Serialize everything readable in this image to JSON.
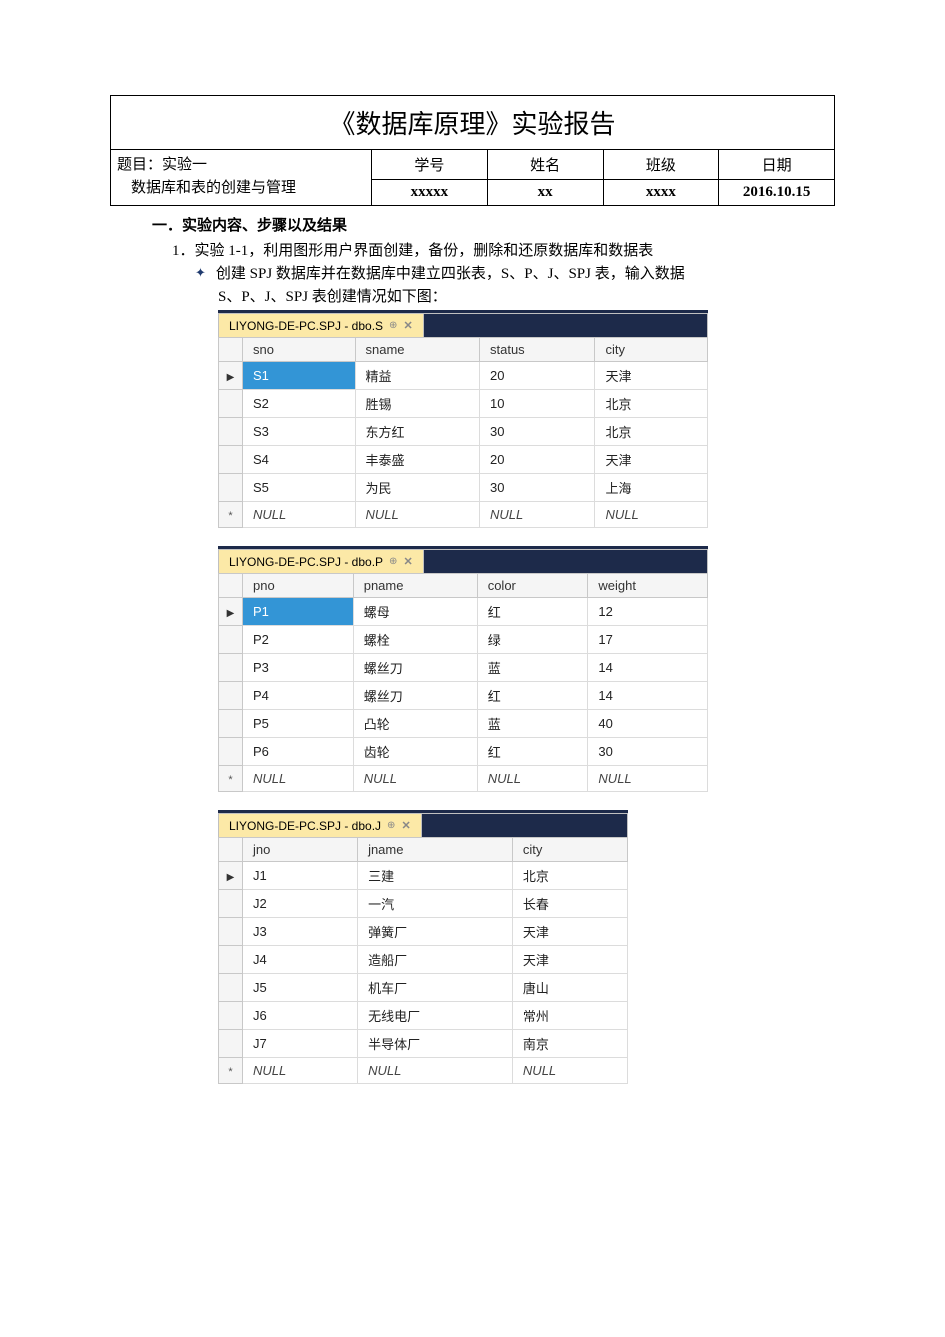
{
  "report": {
    "title": "《数据库原理》实验报告",
    "topic_label": "题目：",
    "topic_line1": "实验一",
    "topic_line2": "数据库和表的创建与管理",
    "headers": {
      "id": "学号",
      "name": "姓名",
      "class": "班级",
      "date": "日期"
    },
    "values": {
      "id": "xxxxx",
      "name": "xx",
      "class": "xxxx",
      "date": "2016.10.15"
    }
  },
  "section1": {
    "heading": "一．实验内容、步骤以及结果",
    "item1": "1．实验 1-1，利用图形用户界面创建，备份，删除和还原数据库和数据表",
    "bullet1": "创建 SPJ 数据库并在数据库中建立四张表，S、P、J、SPJ 表，输入数据",
    "bullet1b": "S、P、J、SPJ 表创建情况如下图："
  },
  "tableS": {
    "tabTitle": "LIYONG-DE-PC.SPJ - dbo.S",
    "columns": [
      "sno",
      "sname",
      "status",
      "city"
    ],
    "rows": [
      [
        "S1",
        "精益",
        "20",
        "天津"
      ],
      [
        "S2",
        "胜锡",
        "10",
        "北京"
      ],
      [
        "S3",
        "东方红",
        "30",
        "北京"
      ],
      [
        "S4",
        "丰泰盛",
        "20",
        "天津"
      ],
      [
        "S5",
        "为民",
        "30",
        "上海"
      ]
    ],
    "nullRow": [
      "NULL",
      "NULL",
      "NULL",
      "NULL"
    ],
    "selected_first": true,
    "tab_bg": "#fce9a7",
    "header_bg": "#1d2a4a",
    "selected_bg": "#3395d6"
  },
  "tableP": {
    "tabTitle": "LIYONG-DE-PC.SPJ - dbo.P",
    "columns": [
      "pno",
      "pname",
      "color",
      "weight"
    ],
    "rows": [
      [
        "P1",
        "螺母",
        "红",
        "12"
      ],
      [
        "P2",
        "螺栓",
        "绿",
        "17"
      ],
      [
        "P3",
        "螺丝刀",
        "蓝",
        "14"
      ],
      [
        "P4",
        "螺丝刀",
        "红",
        "14"
      ],
      [
        "P5",
        "凸轮",
        "蓝",
        "40"
      ],
      [
        "P6",
        "齿轮",
        "红",
        "30"
      ]
    ],
    "nullRow": [
      "NULL",
      "NULL",
      "NULL",
      "NULL"
    ],
    "selected_first": true
  },
  "tableJ": {
    "tabTitle": "LIYONG-DE-PC.SPJ - dbo.J",
    "columns": [
      "jno",
      "jname",
      "city"
    ],
    "rows": [
      [
        "J1",
        "三建",
        "北京"
      ],
      [
        "J2",
        "一汽",
        "长春"
      ],
      [
        "J3",
        "弹簧厂",
        "天津"
      ],
      [
        "J4",
        "造船厂",
        "天津"
      ],
      [
        "J5",
        "机车厂",
        "唐山"
      ],
      [
        "J6",
        "无线电厂",
        "常州"
      ],
      [
        "J7",
        "半导体厂",
        "南京"
      ]
    ],
    "nullRow": [
      "NULL",
      "NULL",
      "NULL"
    ],
    "selected_first": false
  }
}
